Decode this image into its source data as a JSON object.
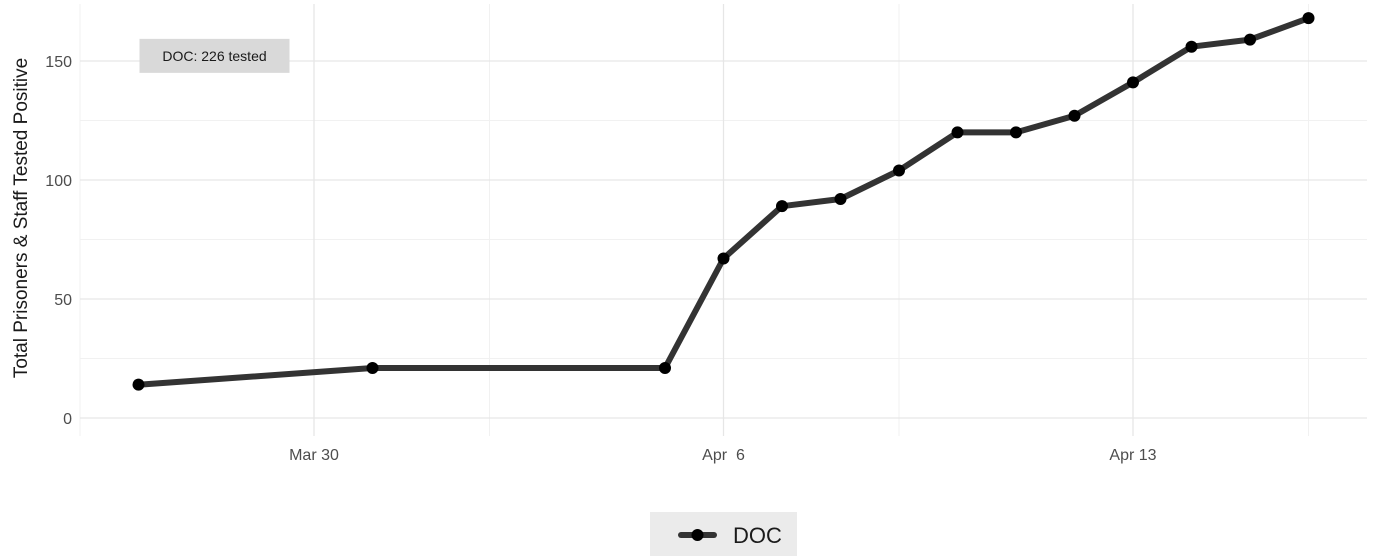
{
  "chart_data": {
    "type": "line",
    "ylabel": "Total Prisoners & Staff Tested Positive",
    "xlabel": "",
    "x_tick_labels": [
      {
        "date": "2020-03-30",
        "label": "Mar 30"
      },
      {
        "date": "2020-04-06",
        "label": "Apr  6"
      },
      {
        "date": "2020-04-13",
        "label": "Apr 13"
      }
    ],
    "x_minor_ticks": [
      "2020-03-26",
      "2020-04-02",
      "2020-04-09",
      "2020-04-16"
    ],
    "xlim": [
      "2020-03-25",
      "2020-04-16"
    ],
    "y_ticks": [
      0,
      50,
      100,
      150
    ],
    "y_minor_ticks": [
      25,
      75,
      125,
      175
    ],
    "ylim": [
      -7,
      175
    ],
    "grid": true,
    "legend_position": "bottom",
    "series": [
      {
        "name": "DOC",
        "color": "#333333",
        "points": [
          {
            "x": "2020-03-27",
            "y": 14
          },
          {
            "x": "2020-03-31",
            "y": 21
          },
          {
            "x": "2020-04-05",
            "y": 21
          },
          {
            "x": "2020-04-06",
            "y": 67
          },
          {
            "x": "2020-04-07",
            "y": 89
          },
          {
            "x": "2020-04-08",
            "y": 92
          },
          {
            "x": "2020-04-09",
            "y": 104
          },
          {
            "x": "2020-04-10",
            "y": 120
          },
          {
            "x": "2020-04-11",
            "y": 120
          },
          {
            "x": "2020-04-12",
            "y": 127
          },
          {
            "x": "2020-04-13",
            "y": 141
          },
          {
            "x": "2020-04-14",
            "y": 156
          },
          {
            "x": "2020-04-15",
            "y": 159
          },
          {
            "x": "2020-04-16",
            "y": 168
          }
        ]
      }
    ],
    "annotation": {
      "text": "DOC: 226 tested",
      "x": "2020-03-27",
      "y": 153
    }
  }
}
